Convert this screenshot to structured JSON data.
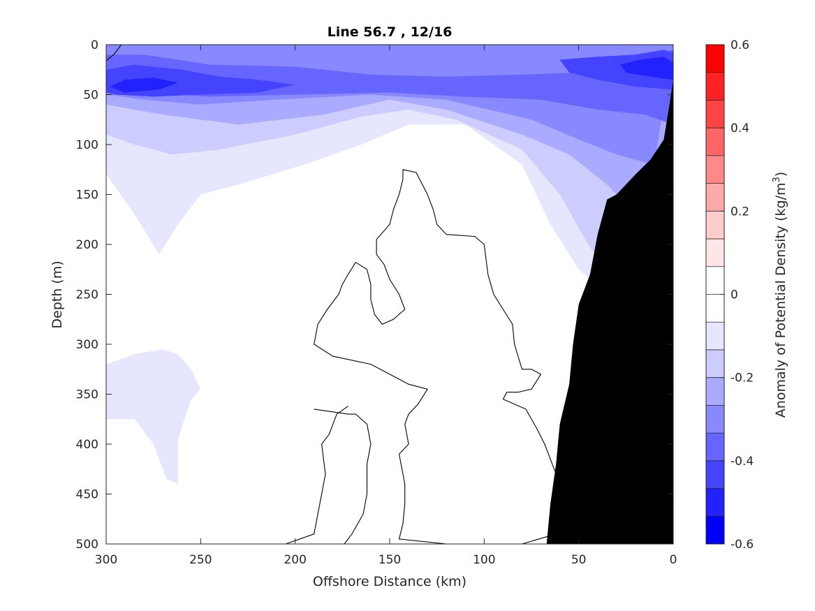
{
  "chart_data": {
    "type": "contour",
    "title": "Line 56.7 , 12/16",
    "xlabel": "Offshore Distance (km)",
    "ylabel": "Depth (m)",
    "colorbar_label": "Anomaly of Potential Density (kg/m",
    "colorbar_label_sup": "3",
    "colorbar_label_end": ")",
    "xlim": [
      300,
      0
    ],
    "ylim": [
      500,
      0
    ],
    "x_ticks": [
      300,
      250,
      200,
      150,
      100,
      50,
      0
    ],
    "x_tick_labels": [
      "300",
      "250",
      "200",
      "150",
      "100",
      "50",
      "0"
    ],
    "y_ticks": [
      0,
      50,
      100,
      150,
      200,
      250,
      300,
      350,
      400,
      450,
      500
    ],
    "y_tick_labels": [
      "0",
      "50",
      "100",
      "150",
      "200",
      "250",
      "300",
      "350",
      "400",
      "450",
      "500"
    ],
    "clim": [
      -0.6,
      0.6
    ],
    "colorbar_ticks": [
      0.6,
      0.4,
      0.2,
      0,
      -0.2,
      -0.4,
      -0.6
    ],
    "colorbar_tick_labels": [
      "0.6",
      "0.4",
      "0.2",
      "0",
      "-0.2",
      "-0.4",
      "-0.6"
    ],
    "colorbar_colors": [
      "#ff0000",
      "#ff2222",
      "#ff4444",
      "#ff6666",
      "#ff8888",
      "#ffaaaa",
      "#ffcccc",
      "#ffe6e6",
      "#ffffff",
      "#ffffff",
      "#e6e6ff",
      "#ccccff",
      "#aaaaff",
      "#8888ff",
      "#6666ff",
      "#4444ff",
      "#2222ff",
      "#0000ff"
    ],
    "regions": [
      {
        "level": -0.05,
        "color": "#e6e6ff",
        "points": [
          [
            300,
            0
          ],
          [
            0,
            0
          ],
          [
            0,
            500
          ],
          [
            30,
            500
          ],
          [
            35,
            250
          ],
          [
            50,
            225
          ],
          [
            65,
            180
          ],
          [
            80,
            120
          ],
          [
            110,
            80
          ],
          [
            140,
            80
          ],
          [
            165,
            100
          ],
          [
            195,
            120
          ],
          [
            230,
            140
          ],
          [
            250,
            150
          ],
          [
            262,
            180
          ],
          [
            272,
            210
          ],
          [
            285,
            170
          ],
          [
            296,
            140
          ],
          [
            300,
            130
          ]
        ]
      },
      {
        "level": -0.05,
        "color": "#e6e6ff",
        "points": [
          [
            300,
            320
          ],
          [
            285,
            310
          ],
          [
            270,
            305
          ],
          [
            262,
            310
          ],
          [
            255,
            325
          ],
          [
            250,
            345
          ],
          [
            255,
            355
          ],
          [
            262,
            395
          ],
          [
            262,
            440
          ],
          [
            268,
            435
          ],
          [
            275,
            400
          ],
          [
            285,
            375
          ],
          [
            300,
            375
          ]
        ]
      },
      {
        "level": -0.1,
        "color": "#ccccff",
        "points": [
          [
            300,
            0
          ],
          [
            0,
            0
          ],
          [
            0,
            500
          ],
          [
            25,
            500
          ],
          [
            30,
            240
          ],
          [
            45,
            200
          ],
          [
            60,
            150
          ],
          [
            80,
            105
          ],
          [
            115,
            75
          ],
          [
            140,
            65
          ],
          [
            165,
            72
          ],
          [
            200,
            90
          ],
          [
            240,
            105
          ],
          [
            265,
            110
          ],
          [
            285,
            100
          ],
          [
            300,
            90
          ]
        ]
      },
      {
        "level": -0.15,
        "color": "#aaaaff",
        "points": [
          [
            300,
            0
          ],
          [
            0,
            0
          ],
          [
            0,
            500
          ],
          [
            20,
            170
          ],
          [
            35,
            140
          ],
          [
            55,
            110
          ],
          [
            80,
            90
          ],
          [
            120,
            65
          ],
          [
            150,
            55
          ],
          [
            185,
            70
          ],
          [
            230,
            80
          ],
          [
            270,
            70
          ],
          [
            300,
            60
          ]
        ]
      },
      {
        "level": -0.2,
        "color": "#8888ff",
        "points": [
          [
            300,
            0
          ],
          [
            0,
            0
          ],
          [
            10,
            120
          ],
          [
            30,
            110
          ],
          [
            50,
            95
          ],
          [
            75,
            75
          ],
          [
            120,
            55
          ],
          [
            160,
            50
          ],
          [
            210,
            55
          ],
          [
            250,
            60
          ],
          [
            280,
            55
          ],
          [
            300,
            50
          ]
        ]
      },
      {
        "level": -0.3,
        "color": "#6666ff",
        "points": [
          [
            300,
            10
          ],
          [
            280,
            10
          ],
          [
            245,
            20
          ],
          [
            200,
            22
          ],
          [
            160,
            30
          ],
          [
            120,
            32
          ],
          [
            80,
            30
          ],
          [
            50,
            28
          ],
          [
            30,
            20
          ],
          [
            10,
            10
          ],
          [
            0,
            5
          ],
          [
            0,
            80
          ],
          [
            15,
            70
          ],
          [
            40,
            65
          ],
          [
            70,
            55
          ],
          [
            110,
            52
          ],
          [
            150,
            48
          ],
          [
            200,
            50
          ],
          [
            245,
            52
          ],
          [
            280,
            48
          ],
          [
            300,
            45
          ]
        ]
      },
      {
        "level": -0.4,
        "color": "#4444ff",
        "points": [
          [
            300,
            25
          ],
          [
            285,
            20
          ],
          [
            260,
            25
          ],
          [
            240,
            32
          ],
          [
            220,
            35
          ],
          [
            200,
            40
          ],
          [
            220,
            48
          ],
          [
            250,
            50
          ],
          [
            275,
            52
          ],
          [
            295,
            50
          ],
          [
            300,
            48
          ]
        ]
      },
      {
        "level": -0.4,
        "color": "#4444ff",
        "points": [
          [
            60,
            15
          ],
          [
            40,
            12
          ],
          [
            20,
            10
          ],
          [
            5,
            5
          ],
          [
            0,
            8
          ],
          [
            0,
            45
          ],
          [
            20,
            42
          ],
          [
            40,
            35
          ],
          [
            55,
            28
          ]
        ]
      },
      {
        "level": -0.5,
        "color": "#2222ff",
        "points": [
          [
            298,
            42
          ],
          [
            290,
            35
          ],
          [
            275,
            33
          ],
          [
            262,
            38
          ],
          [
            272,
            45
          ],
          [
            290,
            48
          ]
        ]
      },
      {
        "level": -0.5,
        "color": "#2222ff",
        "points": [
          [
            28,
            20
          ],
          [
            18,
            15
          ],
          [
            5,
            12
          ],
          [
            0,
            18
          ],
          [
            0,
            35
          ],
          [
            12,
            32
          ],
          [
            25,
            28
          ]
        ]
      }
    ],
    "contours": [
      {
        "level": 0,
        "points": [
          [
            143,
            125
          ],
          [
            136,
            128
          ],
          [
            130,
            150
          ],
          [
            127,
            165
          ],
          [
            125,
            180
          ],
          [
            120,
            190
          ],
          [
            105,
            192
          ],
          [
            100,
            200
          ],
          [
            98,
            230
          ],
          [
            95,
            250
          ],
          [
            90,
            265
          ],
          [
            85,
            280
          ],
          [
            84,
            300
          ],
          [
            80,
            325
          ],
          [
            75,
            325
          ],
          [
            70,
            330
          ],
          [
            75,
            345
          ],
          [
            82,
            348
          ],
          [
            88,
            348
          ],
          [
            90,
            355
          ],
          [
            78,
            365
          ],
          [
            72,
            385
          ],
          [
            68,
            400
          ],
          [
            62,
            430
          ],
          [
            60,
            450
          ],
          [
            60,
            475
          ],
          [
            62,
            490
          ],
          [
            80,
            500
          ],
          [
            120,
            500
          ],
          [
            145,
            495
          ],
          [
            143,
            480
          ],
          [
            142,
            460
          ],
          [
            142,
            440
          ],
          [
            145,
            410
          ],
          [
            140,
            400
          ],
          [
            142,
            380
          ],
          [
            140,
            370
          ],
          [
            135,
            360
          ],
          [
            130,
            345
          ],
          [
            140,
            340
          ],
          [
            150,
            330
          ],
          [
            160,
            320
          ],
          [
            180,
            312
          ],
          [
            190,
            300
          ],
          [
            188,
            280
          ],
          [
            183,
            265
          ],
          [
            177,
            250
          ],
          [
            175,
            240
          ],
          [
            172,
            230
          ],
          [
            168,
            218
          ],
          [
            162,
            225
          ],
          [
            160,
            240
          ],
          [
            160,
            255
          ],
          [
            158,
            270
          ],
          [
            154,
            280
          ],
          [
            148,
            275
          ],
          [
            142,
            265
          ],
          [
            145,
            250
          ],
          [
            150,
            235
          ],
          [
            153,
            220
          ],
          [
            157,
            210
          ],
          [
            157,
            195
          ],
          [
            150,
            180
          ],
          [
            148,
            165
          ],
          [
            145,
            150
          ],
          [
            143,
            135
          ],
          [
            143,
            125
          ]
        ]
      },
      {
        "level": 0,
        "points": [
          [
            190,
            365
          ],
          [
            172,
            370
          ],
          [
            168,
            370
          ],
          [
            162,
            380
          ],
          [
            160,
            400
          ],
          [
            162,
            420
          ],
          [
            162,
            450
          ],
          [
            164,
            470
          ],
          [
            170,
            490
          ],
          [
            174,
            500
          ]
        ]
      },
      {
        "level": 0,
        "points": [
          [
            205,
            500
          ],
          [
            190,
            490
          ],
          [
            188,
            470
          ],
          [
            186,
            450
          ],
          [
            184,
            430
          ],
          [
            186,
            400
          ],
          [
            182,
            390
          ],
          [
            178,
            370
          ],
          [
            172,
            362
          ]
        ]
      },
      {
        "level": 0,
        "points": [
          [
            300,
            16
          ],
          [
            296,
            10
          ],
          [
            294,
            5
          ],
          [
            292,
            0
          ]
        ]
      },
      {
        "level": 0,
        "points": [
          [
            32,
            455
          ],
          [
            36,
            462
          ],
          [
            38,
            468
          ],
          [
            35,
            473
          ],
          [
            32,
            475
          ]
        ]
      }
    ],
    "shelf": {
      "color": "#000000",
      "points": [
        [
          0,
          35
        ],
        [
          2,
          60
        ],
        [
          5,
          95
        ],
        [
          12,
          115
        ],
        [
          20,
          130
        ],
        [
          25,
          140
        ],
        [
          30,
          150
        ],
        [
          35,
          155
        ],
        [
          40,
          190
        ],
        [
          44,
          230
        ],
        [
          46,
          240
        ],
        [
          50,
          260
        ],
        [
          53,
          300
        ],
        [
          55,
          340
        ],
        [
          60,
          380
        ],
        [
          62,
          420
        ],
        [
          65,
          460
        ],
        [
          67,
          500
        ],
        [
          0,
          500
        ]
      ]
    }
  }
}
